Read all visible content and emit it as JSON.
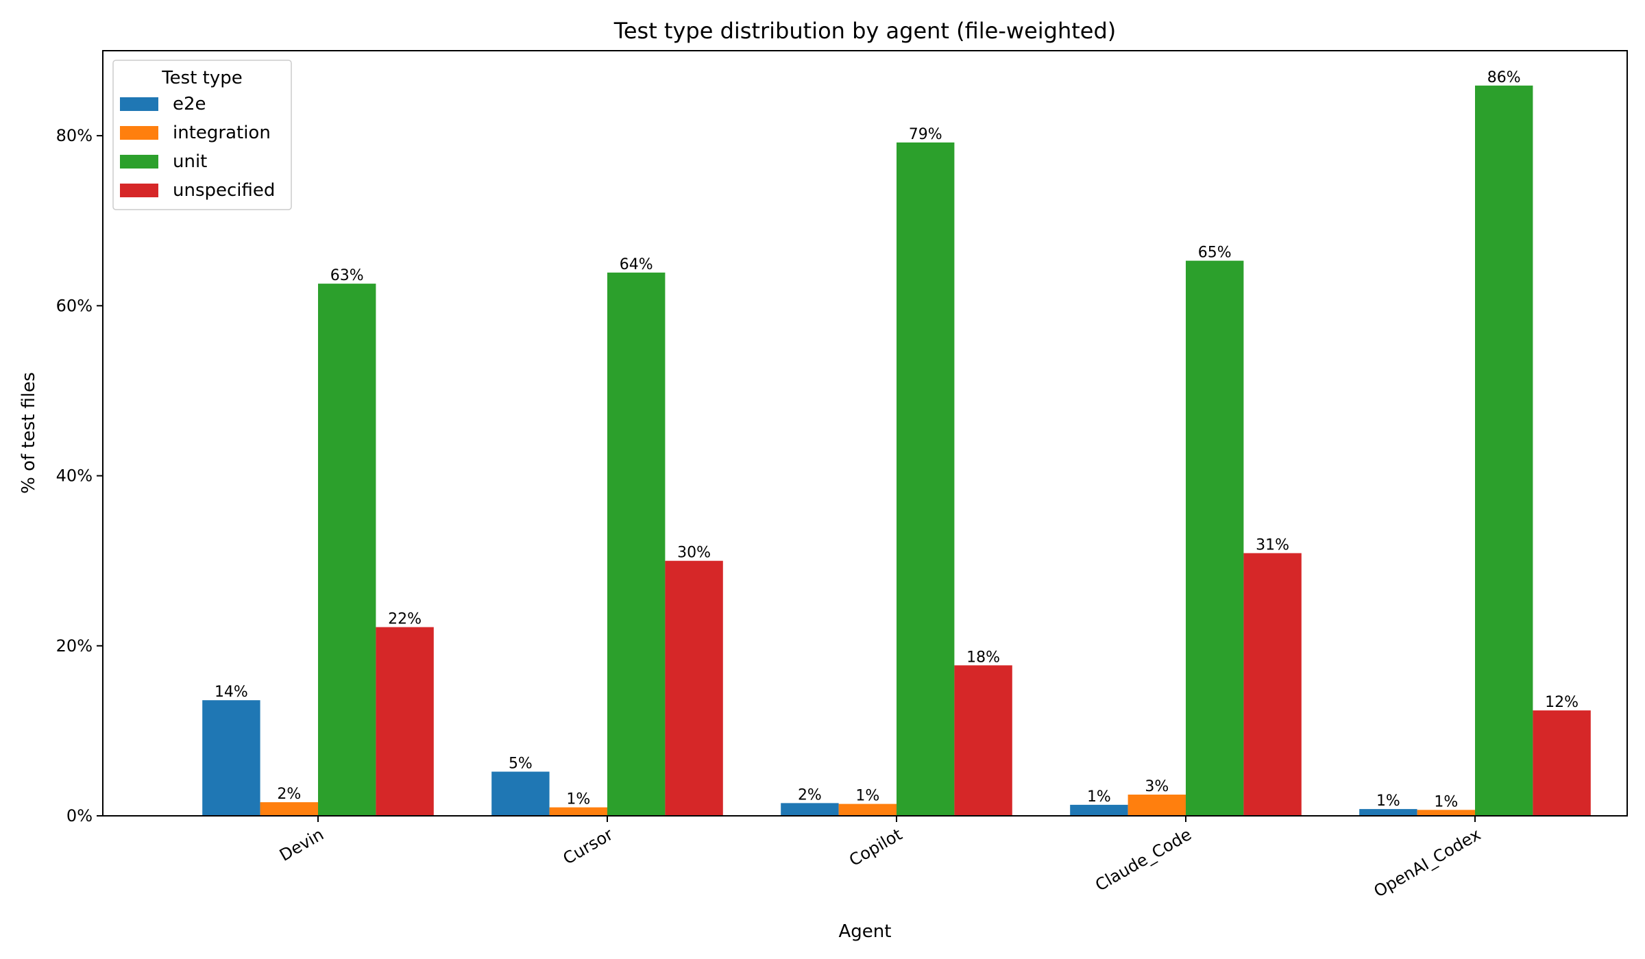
{
  "chart_data": {
    "type": "bar",
    "title": "Test type distribution by agent (file-weighted)",
    "xlabel": "Agent",
    "ylabel": "% of test files",
    "ylim": [
      0,
      90
    ],
    "yticks": [
      "0%",
      "20%",
      "40%",
      "60%",
      "80%"
    ],
    "ytick_values": [
      0,
      20,
      40,
      60,
      80
    ],
    "grid": false,
    "legend_title": "Test type",
    "legend_position": "top-left",
    "categories": [
      "Devin",
      "Cursor",
      "Copilot",
      "Claude_Code",
      "OpenAI_Codex"
    ],
    "series": [
      {
        "name": "e2e",
        "color": "#1f77b4",
        "values": [
          13.6,
          5.2,
          1.5,
          1.3,
          0.8
        ],
        "labels": [
          "14%",
          "5%",
          "2%",
          "1%",
          "1%"
        ]
      },
      {
        "name": "integration",
        "color": "#ff7f0e",
        "values": [
          1.6,
          1.0,
          1.4,
          2.5,
          0.7
        ],
        "labels": [
          "2%",
          "1%",
          "1%",
          "3%",
          "1%"
        ]
      },
      {
        "name": "unit",
        "color": "#2ca02c",
        "values": [
          62.6,
          63.9,
          79.2,
          65.3,
          85.9
        ],
        "labels": [
          "63%",
          "64%",
          "79%",
          "65%",
          "86%"
        ]
      },
      {
        "name": "unspecified",
        "color": "#d62728",
        "values": [
          22.2,
          30.0,
          17.7,
          30.9,
          12.4
        ],
        "labels": [
          "22%",
          "30%",
          "18%",
          "31%",
          "12%"
        ]
      }
    ]
  }
}
